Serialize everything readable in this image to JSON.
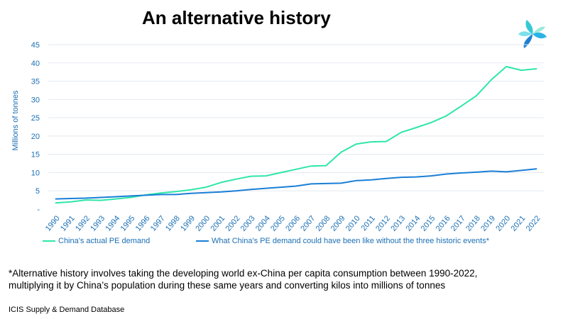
{
  "page": {
    "title": "An alternative history",
    "footnote_line1": "*Alternative history involves taking the developing world ex-China per capita consumption between 1990-2022,",
    "footnote_line2": " multiplying it by China’s population during these same years and converting kilos into millions of tonnes",
    "source": "ICIS Supply  & Demand Database"
  },
  "colors": {
    "actual": "#2ee6a8",
    "alternative": "#1a7fd6",
    "axis_text": "#1a6fb4",
    "grid": "#e3e9ef"
  },
  "chart_data": {
    "type": "line",
    "ylabel": "Millions of tonnes",
    "xlabel": "",
    "ylim": [
      0,
      45
    ],
    "yticks": [
      {
        "value": 0,
        "label": "-"
      },
      {
        "value": 5,
        "label": "5"
      },
      {
        "value": 10,
        "label": "10"
      },
      {
        "value": 15,
        "label": "15"
      },
      {
        "value": 20,
        "label": "20"
      },
      {
        "value": 25,
        "label": "25"
      },
      {
        "value": 30,
        "label": "30"
      },
      {
        "value": 35,
        "label": "35"
      },
      {
        "value": 40,
        "label": "40"
      },
      {
        "value": 45,
        "label": "45"
      }
    ],
    "grid": true,
    "legend_position": "bottom",
    "categories": [
      "1990",
      "1991",
      "1992",
      "1993",
      "1994",
      "1995",
      "1996",
      "1997",
      "1998",
      "1999",
      "2000",
      "2001",
      "2002",
      "2003",
      "2004",
      "2005",
      "2006",
      "2007",
      "2008",
      "2009",
      "2010",
      "2011",
      "2012",
      "2013",
      "2014",
      "2015",
      "2016",
      "2017",
      "2018",
      "2019",
      "2020",
      "2021",
      "2022"
    ],
    "series": [
      {
        "name": "China's actual PE demand",
        "color": "#2ee6a8",
        "values": [
          1.7,
          2.0,
          2.5,
          2.4,
          2.8,
          3.2,
          3.9,
          4.4,
          4.8,
          5.3,
          6.0,
          7.3,
          8.2,
          9.0,
          9.1,
          10.0,
          10.9,
          11.8,
          11.9,
          15.6,
          17.8,
          18.4,
          18.5,
          21.0,
          22.3,
          23.7,
          25.5,
          28.2,
          31.0,
          35.4,
          39.0,
          38.0,
          38.4
        ]
      },
      {
        "name": "What China's PE demand could have been like without the three historic events*",
        "color": "#1a7fd6",
        "values": [
          2.8,
          2.9,
          3.0,
          3.2,
          3.4,
          3.6,
          3.8,
          4.0,
          4.0,
          4.3,
          4.5,
          4.7,
          5.0,
          5.4,
          5.7,
          6.0,
          6.3,
          6.9,
          7.0,
          7.1,
          7.8,
          8.0,
          8.4,
          8.7,
          8.8,
          9.1,
          9.6,
          9.9,
          10.1,
          10.4,
          10.2,
          10.6,
          11.0
        ]
      }
    ]
  }
}
